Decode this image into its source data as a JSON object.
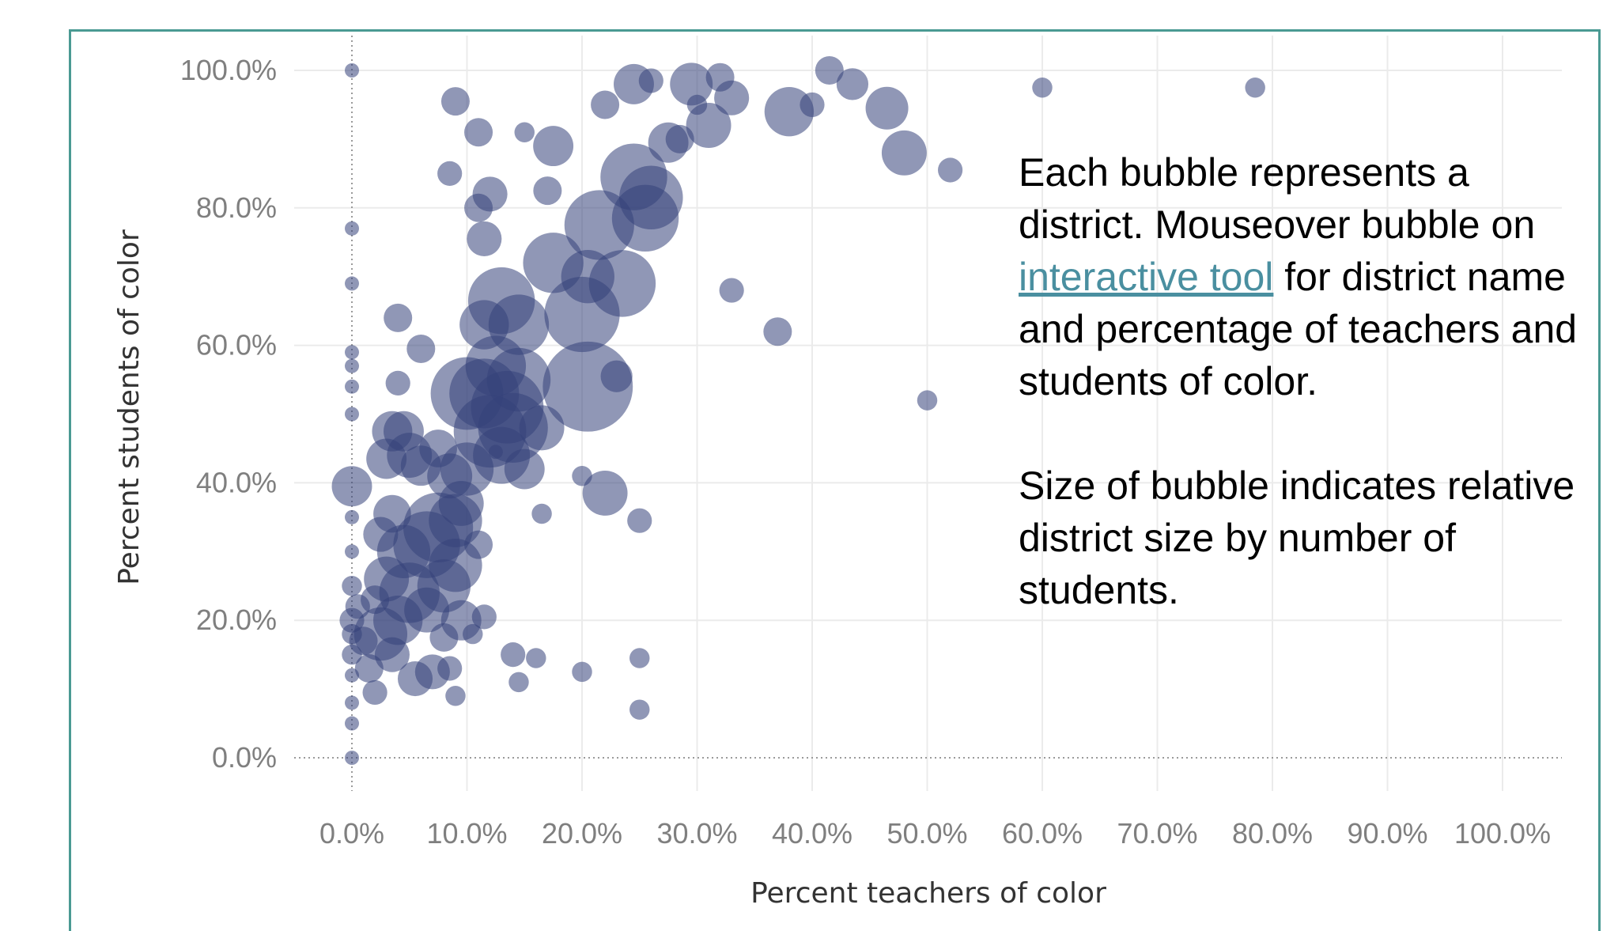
{
  "annotation": {
    "line1_before_link": "Each bubble represents a district. Mouseover bubble on ",
    "link_text": "interactive tool",
    "line1_after_link": " for district name and percentage of teachers and students of color.",
    "line2": "Size of bubble indicates relative district size by number of students."
  },
  "colors": {
    "bubble": "#34427a",
    "frame": "#4a9a93",
    "link": "#4a8fa0"
  },
  "chart_data": {
    "type": "scatter",
    "title": "",
    "xlabel": "Percent teachers of color",
    "ylabel": "Percent students of color",
    "xlim": [
      0,
      100
    ],
    "ylim": [
      0,
      100
    ],
    "x_ticks": [
      "0.0%",
      "10.0%",
      "20.0%",
      "30.0%",
      "40.0%",
      "50.0%",
      "60.0%",
      "70.0%",
      "80.0%",
      "90.0%",
      "100.0%"
    ],
    "y_ticks": [
      "0.0%",
      "20.0%",
      "40.0%",
      "60.0%",
      "80.0%",
      "100.0%"
    ],
    "grid": true,
    "legend": "none",
    "size_encodes": "number of students",
    "points": [
      {
        "x": 0.0,
        "y": 100.0,
        "s": 1
      },
      {
        "x": 0.0,
        "y": 77.0,
        "s": 1
      },
      {
        "x": 0.0,
        "y": 69.0,
        "s": 1
      },
      {
        "x": 0.0,
        "y": 59.0,
        "s": 1
      },
      {
        "x": 0.0,
        "y": 57.0,
        "s": 1
      },
      {
        "x": 0.0,
        "y": 54.0,
        "s": 1
      },
      {
        "x": 0.0,
        "y": 50.0,
        "s": 1
      },
      {
        "x": 0.0,
        "y": 39.5,
        "s": 8
      },
      {
        "x": 0.0,
        "y": 35.0,
        "s": 1
      },
      {
        "x": 0.0,
        "y": 30.0,
        "s": 1
      },
      {
        "x": 0.0,
        "y": 25.0,
        "s": 2
      },
      {
        "x": 0.0,
        "y": 20.0,
        "s": 3
      },
      {
        "x": 0.0,
        "y": 18.0,
        "s": 2
      },
      {
        "x": 0.0,
        "y": 15.0,
        "s": 2
      },
      {
        "x": 0.0,
        "y": 12.0,
        "s": 1
      },
      {
        "x": 0.0,
        "y": 8.0,
        "s": 1
      },
      {
        "x": 0.0,
        "y": 5.0,
        "s": 1
      },
      {
        "x": 0.0,
        "y": 0.0,
        "s": 1
      },
      {
        "x": 0.5,
        "y": 22.0,
        "s": 3
      },
      {
        "x": 1.0,
        "y": 17.0,
        "s": 4
      },
      {
        "x": 1.5,
        "y": 13.0,
        "s": 4
      },
      {
        "x": 2.0,
        "y": 23.0,
        "s": 4
      },
      {
        "x": 2.0,
        "y": 9.5,
        "s": 3
      },
      {
        "x": 2.5,
        "y": 18.0,
        "s": 14
      },
      {
        "x": 2.5,
        "y": 32.5,
        "s": 6
      },
      {
        "x": 3.0,
        "y": 43.5,
        "s": 8
      },
      {
        "x": 3.0,
        "y": 26.0,
        "s": 10
      },
      {
        "x": 3.5,
        "y": 47.5,
        "s": 8
      },
      {
        "x": 3.5,
        "y": 35.5,
        "s": 7
      },
      {
        "x": 3.5,
        "y": 15.0,
        "s": 6
      },
      {
        "x": 4.0,
        "y": 64.0,
        "s": 4
      },
      {
        "x": 4.0,
        "y": 54.5,
        "s": 3
      },
      {
        "x": 4.0,
        "y": 20.0,
        "s": 12
      },
      {
        "x": 4.5,
        "y": 47.5,
        "s": 8
      },
      {
        "x": 4.5,
        "y": 30.0,
        "s": 14
      },
      {
        "x": 5.0,
        "y": 44.0,
        "s": 10
      },
      {
        "x": 5.0,
        "y": 24.0,
        "s": 18
      },
      {
        "x": 5.5,
        "y": 11.5,
        "s": 6
      },
      {
        "x": 6.0,
        "y": 59.5,
        "s": 4
      },
      {
        "x": 6.0,
        "y": 42.5,
        "s": 8
      },
      {
        "x": 6.5,
        "y": 31.0,
        "s": 22
      },
      {
        "x": 6.5,
        "y": 21.5,
        "s": 10
      },
      {
        "x": 7.0,
        "y": 12.5,
        "s": 6
      },
      {
        "x": 7.5,
        "y": 45.0,
        "s": 7
      },
      {
        "x": 7.5,
        "y": 33.5,
        "s": 24
      },
      {
        "x": 8.0,
        "y": 25.0,
        "s": 14
      },
      {
        "x": 8.0,
        "y": 17.5,
        "s": 4
      },
      {
        "x": 8.5,
        "y": 85.0,
        "s": 3
      },
      {
        "x": 8.5,
        "y": 41.0,
        "s": 10
      },
      {
        "x": 9.0,
        "y": 95.5,
        "s": 4
      },
      {
        "x": 9.0,
        "y": 34.5,
        "s": 14
      },
      {
        "x": 9.0,
        "y": 28.0,
        "s": 14
      },
      {
        "x": 9.5,
        "y": 20.0,
        "s": 8
      },
      {
        "x": 9.5,
        "y": 37.0,
        "s": 10
      },
      {
        "x": 10.0,
        "y": 42.0,
        "s": 14
      },
      {
        "x": 10.0,
        "y": 53.0,
        "s": 26
      },
      {
        "x": 11.0,
        "y": 91.0,
        "s": 4
      },
      {
        "x": 11.0,
        "y": 31.0,
        "s": 4
      },
      {
        "x": 11.0,
        "y": 80.0,
        "s": 4
      },
      {
        "x": 11.5,
        "y": 75.5,
        "s": 6
      },
      {
        "x": 11.5,
        "y": 63.0,
        "s": 12
      },
      {
        "x": 11.5,
        "y": 53.0,
        "s": 24
      },
      {
        "x": 12.0,
        "y": 82.0,
        "s": 6
      },
      {
        "x": 12.0,
        "y": 47.5,
        "s": 26
      },
      {
        "x": 12.5,
        "y": 57.0,
        "s": 18
      },
      {
        "x": 13.0,
        "y": 66.5,
        "s": 22
      },
      {
        "x": 13.0,
        "y": 44.0,
        "s": 16
      },
      {
        "x": 13.5,
        "y": 51.0,
        "s": 26
      },
      {
        "x": 14.0,
        "y": 48.0,
        "s": 24
      },
      {
        "x": 14.5,
        "y": 55.0,
        "s": 20
      },
      {
        "x": 14.5,
        "y": 63.0,
        "s": 18
      },
      {
        "x": 15.0,
        "y": 42.0,
        "s": 8
      },
      {
        "x": 15.0,
        "y": 91.0,
        "s": 2
      },
      {
        "x": 16.5,
        "y": 48.0,
        "s": 10
      },
      {
        "x": 17.0,
        "y": 82.5,
        "s": 4
      },
      {
        "x": 17.5,
        "y": 89.0,
        "s": 8
      },
      {
        "x": 17.5,
        "y": 72.0,
        "s": 18
      },
      {
        "x": 20.0,
        "y": 64.5,
        "s": 28
      },
      {
        "x": 20.5,
        "y": 70.0,
        "s": 14
      },
      {
        "x": 20.5,
        "y": 54.0,
        "s": 40
      },
      {
        "x": 21.5,
        "y": 77.5,
        "s": 24
      },
      {
        "x": 22.0,
        "y": 95.0,
        "s": 4
      },
      {
        "x": 22.0,
        "y": 38.5,
        "s": 10
      },
      {
        "x": 23.0,
        "y": 55.5,
        "s": 5
      },
      {
        "x": 23.5,
        "y": 69.0,
        "s": 22
      },
      {
        "x": 24.5,
        "y": 98.0,
        "s": 8
      },
      {
        "x": 24.5,
        "y": 84.5,
        "s": 22
      },
      {
        "x": 25.5,
        "y": 78.5,
        "s": 22
      },
      {
        "x": 26.0,
        "y": 81.5,
        "s": 20
      },
      {
        "x": 25.0,
        "y": 34.5,
        "s": 3
      },
      {
        "x": 26.0,
        "y": 98.5,
        "s": 3
      },
      {
        "x": 27.5,
        "y": 89.5,
        "s": 8
      },
      {
        "x": 28.5,
        "y": 90.0,
        "s": 4
      },
      {
        "x": 29.5,
        "y": 98.0,
        "s": 9
      },
      {
        "x": 30.0,
        "y": 95.0,
        "s": 2
      },
      {
        "x": 31.0,
        "y": 92.0,
        "s": 10
      },
      {
        "x": 32.0,
        "y": 99.0,
        "s": 4
      },
      {
        "x": 33.0,
        "y": 96.0,
        "s": 6
      },
      {
        "x": 33.0,
        "y": 68.0,
        "s": 3
      },
      {
        "x": 37.0,
        "y": 62.0,
        "s": 4
      },
      {
        "x": 38.0,
        "y": 94.0,
        "s": 12
      },
      {
        "x": 40.0,
        "y": 95.0,
        "s": 3
      },
      {
        "x": 41.5,
        "y": 100.0,
        "s": 4
      },
      {
        "x": 43.5,
        "y": 98.0,
        "s": 5
      },
      {
        "x": 46.5,
        "y": 94.5,
        "s": 9
      },
      {
        "x": 48.0,
        "y": 88.0,
        "s": 10
      },
      {
        "x": 52.0,
        "y": 85.5,
        "s": 3
      },
      {
        "x": 50.0,
        "y": 52.0,
        "s": 2
      },
      {
        "x": 60.0,
        "y": 97.5,
        "s": 2
      },
      {
        "x": 78.5,
        "y": 97.5,
        "s": 2
      },
      {
        "x": 12.5,
        "y": 44.5,
        "s": 1
      },
      {
        "x": 14.0,
        "y": 15.0,
        "s": 3
      },
      {
        "x": 16.0,
        "y": 14.5,
        "s": 2
      },
      {
        "x": 20.0,
        "y": 12.5,
        "s": 2
      },
      {
        "x": 25.0,
        "y": 14.5,
        "s": 2
      },
      {
        "x": 25.0,
        "y": 7.0,
        "s": 2
      },
      {
        "x": 14.5,
        "y": 11.0,
        "s": 2
      },
      {
        "x": 16.5,
        "y": 35.5,
        "s": 2
      },
      {
        "x": 20.0,
        "y": 41.0,
        "s": 2
      },
      {
        "x": 10.5,
        "y": 18.0,
        "s": 2
      },
      {
        "x": 11.5,
        "y": 20.5,
        "s": 3
      },
      {
        "x": 8.5,
        "y": 13.0,
        "s": 3
      },
      {
        "x": 9.0,
        "y": 9.0,
        "s": 2
      }
    ]
  }
}
